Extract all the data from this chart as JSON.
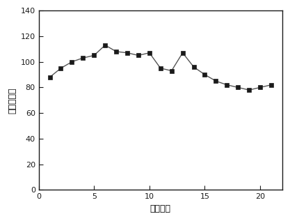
{
  "x": [
    1,
    2,
    3,
    4,
    5,
    6,
    7,
    8,
    9,
    10,
    11,
    12,
    13,
    14,
    15,
    16,
    17,
    18,
    19,
    20,
    21
  ],
  "y": [
    88,
    95,
    100,
    103,
    105,
    113,
    108,
    107,
    105,
    107,
    95,
    93,
    107,
    96,
    90,
    85,
    82,
    80,
    78,
    80,
    82
  ],
  "xlabel": "循环次数",
  "ylabel": "放电比容量",
  "xlim": [
    0,
    22
  ],
  "ylim": [
    0,
    140
  ],
  "xticks": [
    0,
    5,
    10,
    15,
    20
  ],
  "yticks": [
    0,
    20,
    40,
    60,
    80,
    100,
    120,
    140
  ],
  "marker": "s",
  "marker_color": "#1a1a1a",
  "marker_size": 5,
  "line_color": "#555555",
  "line_width": 1.0,
  "bg_color": "#ffffff",
  "font_size_label": 9,
  "font_size_tick": 8
}
